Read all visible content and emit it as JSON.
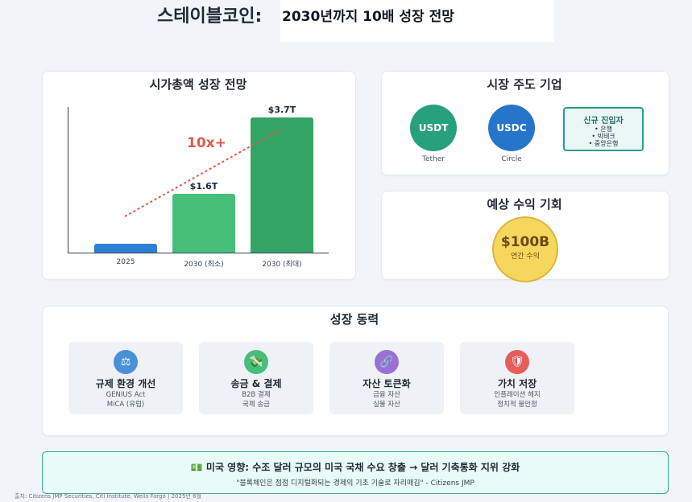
{
  "header": {
    "title": "스테이블코인:",
    "subtitle": "2030년까지 10배 성장 전망"
  },
  "market_cap": {
    "title": "시가총액 성장 전망",
    "growth_label": "10x+",
    "colors": {
      "bar_2025": "#2f80d4",
      "bar_min": "#47bf78",
      "bar_max": "#34a465",
      "trend": "#e05a4a"
    }
  },
  "chart_data": {
    "type": "bar",
    "categories": [
      "2025",
      "2030 (최소)",
      "2030 (최대)"
    ],
    "values": [
      0.25,
      1.6,
      3.7
    ],
    "value_labels": [
      "",
      "$1.6T",
      "$3.7T"
    ],
    "ylim": [
      0,
      3.7
    ],
    "annotation": "10x+"
  },
  "leaders": {
    "title": "시장 주도 기업",
    "coins": [
      {
        "symbol": "USDT",
        "issuer": "Tether",
        "color": "#26a17b"
      },
      {
        "symbol": "USDC",
        "issuer": "Circle",
        "color": "#2775ca"
      }
    ],
    "new_entrants": {
      "title": "신규 진입자",
      "items": [
        "• 은행",
        "• 빅테크",
        "• 중앙은행"
      ]
    }
  },
  "revenue": {
    "title": "예상 수익 기회",
    "amount": "$100B",
    "caption": "연간 수익"
  },
  "drivers": {
    "title": "성장 동력",
    "items": [
      {
        "icon": "scales-icon",
        "title": "규제 환경 개선",
        "lines": [
          "GENIUS Act",
          "MiCA (유럽)"
        ],
        "color": "#4a90d9",
        "glyph": "⚖"
      },
      {
        "icon": "money-transfer-icon",
        "title": "송금 & 결제",
        "lines": [
          "B2B 결제",
          "국제 송금"
        ],
        "color": "#47bf78",
        "glyph": "💸"
      },
      {
        "icon": "link-icon",
        "title": "자산 토큰화",
        "lines": [
          "금융 자산",
          "실물 자산"
        ],
        "color": "#9b6fd6",
        "glyph": "🔗"
      },
      {
        "icon": "shield-icon",
        "title": "가치 저장",
        "lines": [
          "인플레이션 헤지",
          "정치적 불안정"
        ],
        "color": "#e85c5c",
        "glyph": "🛡"
      }
    ]
  },
  "impact": {
    "icon": "money-icon",
    "icon_glyph": "💵",
    "headline": "미국 영향: 수조 달러 규모의 미국 국채 수요 창출 → 달러 기축통화 지위 강화",
    "quote": "\"블록체인은 점점 디지털화되는 경제의 기초 기술로 자리매김\" - Citizens JMP"
  },
  "source": "출처: Citizens JMP Securities, Citi Institute, Wells Fargo | 2025년 6월"
}
